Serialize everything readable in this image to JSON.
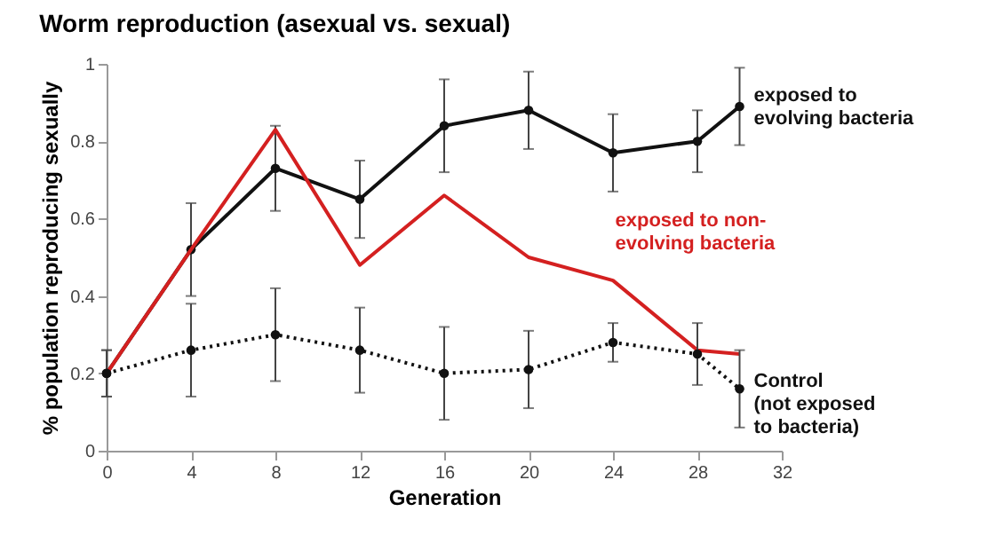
{
  "chart_data": {
    "type": "line",
    "title": "Worm reproduction (asexual vs. sexual)",
    "xlabel": "Generation",
    "ylabel": "% population reproducing sexually",
    "xlim": [
      0,
      32
    ],
    "xticks": [
      0,
      4,
      8,
      12,
      16,
      20,
      24,
      28,
      32
    ],
    "ylim": [
      0,
      1
    ],
    "yticks": [
      0,
      0.2,
      0.4,
      0.6,
      0.8,
      1
    ],
    "grid": false,
    "series": [
      {
        "name": "exposed to\nevolving bacteria",
        "color": "#111111",
        "marker": "circle",
        "line_style": "solid",
        "x": [
          0,
          4,
          8,
          12,
          16,
          20,
          24,
          28,
          30
        ],
        "values": [
          0.2,
          0.52,
          0.73,
          0.65,
          0.84,
          0.88,
          0.77,
          0.8,
          0.89
        ],
        "errors": [
          0.06,
          0.12,
          0.11,
          0.1,
          0.12,
          0.1,
          0.1,
          0.08,
          0.1
        ]
      },
      {
        "name": "exposed to non-\nevolving bacteria",
        "color": "#d42020",
        "marker": "none",
        "line_style": "solid",
        "x": [
          0,
          4,
          8,
          12,
          16,
          20,
          24,
          28,
          30
        ],
        "values": [
          0.2,
          0.52,
          0.83,
          0.48,
          0.66,
          0.5,
          0.44,
          0.26,
          0.25
        ]
      },
      {
        "name": "Control\n(not exposed\nto bacteria)",
        "color": "#111111",
        "marker": "circle",
        "line_style": "dotted",
        "x": [
          0,
          4,
          8,
          12,
          16,
          20,
          24,
          28,
          30
        ],
        "values": [
          0.2,
          0.26,
          0.3,
          0.26,
          0.2,
          0.21,
          0.28,
          0.25,
          0.16
        ],
        "errors": [
          0.06,
          0.12,
          0.12,
          0.11,
          0.12,
          0.1,
          0.05,
          0.08,
          0.1
        ]
      }
    ]
  }
}
